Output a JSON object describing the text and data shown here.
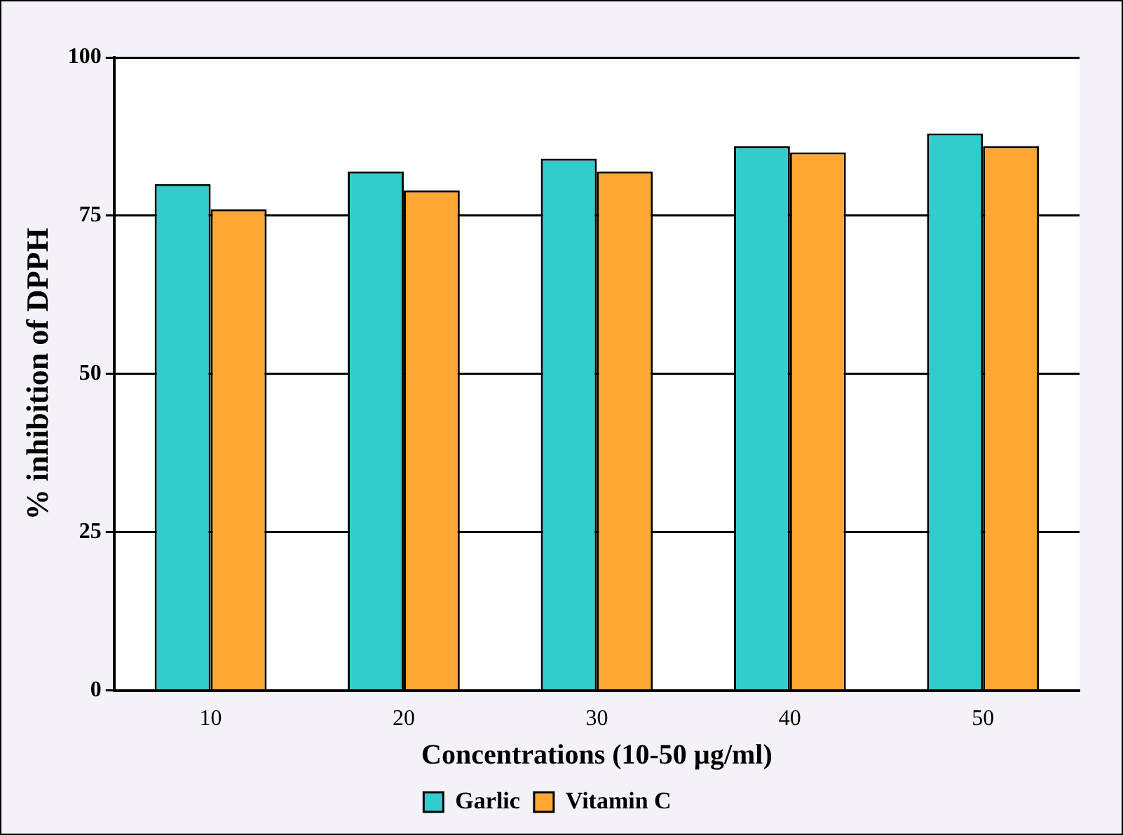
{
  "chart_data": {
    "type": "bar",
    "xlabel": "Concentrations (10-50 µg/ml)",
    "ylabel": "% inhibition of DPPH",
    "categories": [
      "10",
      "20",
      "30",
      "40",
      "50"
    ],
    "series": [
      {
        "name": "Garlic",
        "color": "#33cccc",
        "values": [
          80,
          82,
          84,
          86,
          88
        ]
      },
      {
        "name": "Vitamin C",
        "color": "#ffa733",
        "values": [
          76,
          79,
          82,
          85,
          86
        ]
      }
    ],
    "ylim": [
      0,
      100
    ],
    "yticks": [
      0,
      25,
      50,
      75,
      100
    ],
    "grid": "y",
    "legend": "bottom"
  }
}
